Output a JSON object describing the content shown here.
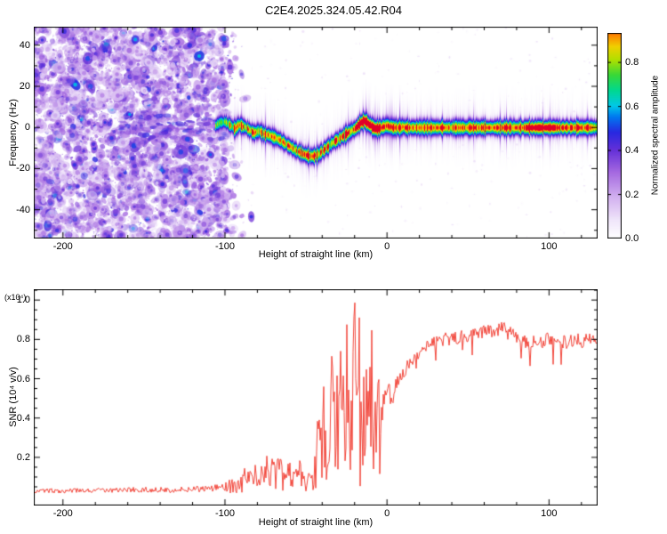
{
  "title": "C2E4.2025.324.05.42.R04",
  "colors": {
    "axis": "#000000",
    "snr_line": "#f03428",
    "background": "#ffffff"
  },
  "chart_data": [
    {
      "type": "heatmap",
      "name": "spectrogram",
      "xlabel": "Height of straight line (km)",
      "ylabel": "Frequency (Hz)",
      "xlim": [
        -218,
        130
      ],
      "ylim": [
        -54,
        49
      ],
      "x_ticks": [
        -200,
        -100,
        0,
        100
      ],
      "y_ticks": [
        -40,
        -20,
        0,
        20,
        40
      ],
      "grid": false,
      "colorbar": {
        "label": "Normalized spectral amplitude",
        "ticks": [
          0.0,
          0.2,
          0.4,
          0.6,
          0.8
        ],
        "lim": [
          0,
          1
        ]
      },
      "colormap": [
        {
          "v": 0.0,
          "c": "#ffffff"
        },
        {
          "v": 0.08,
          "c": "#f0e6fa"
        },
        {
          "v": 0.18,
          "c": "#d4b4f0"
        },
        {
          "v": 0.3,
          "c": "#a468e0"
        },
        {
          "v": 0.4,
          "c": "#6430d8"
        },
        {
          "v": 0.48,
          "c": "#2828e0"
        },
        {
          "v": 0.55,
          "c": "#0078f0"
        },
        {
          "v": 0.6,
          "c": "#00c8e8"
        },
        {
          "v": 0.67,
          "c": "#00d890"
        },
        {
          "v": 0.74,
          "c": "#38d838"
        },
        {
          "v": 0.81,
          "c": "#b0e000"
        },
        {
          "v": 0.87,
          "c": "#f0d000"
        },
        {
          "v": 0.93,
          "c": "#ff7800"
        },
        {
          "v": 1.0,
          "c": "#e00028"
        }
      ],
      "noise_region": {
        "x_start": -218,
        "x_end": -100,
        "description": "dense purple speckle noise (no signal) left of -100 km"
      },
      "trace": [
        [
          -106,
          1
        ],
        [
          -103,
          2.5
        ],
        [
          -100,
          3
        ],
        [
          -97,
          1.5
        ],
        [
          -94,
          -0.5
        ],
        [
          -91,
          1.5
        ],
        [
          -88,
          0.5
        ],
        [
          -85,
          -1
        ],
        [
          -82,
          -2.5
        ],
        [
          -79,
          -1.5
        ],
        [
          -76,
          -3
        ],
        [
          -73,
          -3.5
        ],
        [
          -70,
          -4.5
        ],
        [
          -67,
          -5.5
        ],
        [
          -64,
          -7
        ],
        [
          -61,
          -8.5
        ],
        [
          -58,
          -10
        ],
        [
          -55,
          -11.5
        ],
        [
          -52,
          -12.5
        ],
        [
          -49,
          -13.5
        ],
        [
          -46,
          -13.8
        ],
        [
          -43,
          -13.2
        ],
        [
          -40,
          -11.5
        ],
        [
          -37,
          -9.5
        ],
        [
          -34,
          -7.5
        ],
        [
          -31,
          -6
        ],
        [
          -28,
          -4.5
        ],
        [
          -25,
          -3
        ],
        [
          -22,
          -1.5
        ],
        [
          -19,
          0
        ],
        [
          -16,
          2.5
        ],
        [
          -14,
          3.5
        ],
        [
          -12,
          2.5
        ],
        [
          -10,
          1
        ],
        [
          -8,
          0
        ],
        [
          -6,
          -0.5
        ],
        [
          -4,
          0
        ],
        [
          -2,
          0.5
        ],
        [
          0,
          1
        ],
        [
          3,
          0.3
        ],
        [
          6,
          0
        ],
        [
          10,
          0.4
        ],
        [
          15,
          0
        ],
        [
          20,
          0.3
        ],
        [
          25,
          0
        ],
        [
          30,
          0.2
        ],
        [
          40,
          0.3
        ],
        [
          50,
          0
        ],
        [
          60,
          0.2
        ],
        [
          70,
          0
        ],
        [
          80,
          0.2
        ],
        [
          90,
          0.1
        ],
        [
          100,
          0.2
        ],
        [
          110,
          0
        ],
        [
          120,
          0.1
        ],
        [
          130,
          0
        ]
      ]
    },
    {
      "type": "line",
      "name": "snr",
      "xlabel": "Height of straight line (km)",
      "ylabel": "SNR (10⁴ v/v)",
      "scale_note": "(x10⁴)",
      "xlim": [
        -218,
        130
      ],
      "ylim": [
        -0.045,
        1.055
      ],
      "x_ticks": [
        -200,
        -100,
        0,
        100
      ],
      "y_ticks": [
        0.2,
        0.4,
        0.6,
        0.8,
        1.0
      ],
      "grid": false,
      "series": [
        {
          "name": "SNR",
          "color": "#f03428",
          "points": [
            [
              -218,
              0.03
            ],
            [
              -190,
              0.03
            ],
            [
              -160,
              0.035
            ],
            [
              -130,
              0.035
            ],
            [
              -110,
              0.04
            ],
            [
              -100,
              0.05
            ],
            [
              -92,
              0.07
            ],
            [
              -86,
              0.1
            ],
            [
              -80,
              0.14
            ],
            [
              -76,
              0.18
            ],
            [
              -72,
              0.22
            ],
            [
              -69,
              0.12
            ],
            [
              -66,
              0.17
            ],
            [
              -63,
              0.1
            ],
            [
              -60,
              0.14
            ],
            [
              -57,
              0.1
            ],
            [
              -54,
              0.16
            ],
            [
              -51,
              0.1
            ],
            [
              -49,
              0.07
            ],
            [
              -47,
              0.12
            ],
            [
              -45,
              0.08
            ],
            [
              -43,
              0.28
            ],
            [
              -41,
              0.5
            ],
            [
              -40,
              0.3
            ],
            [
              -38,
              0.55
            ],
            [
              -36,
              0.35
            ],
            [
              -34,
              0.6
            ],
            [
              -32,
              0.4
            ],
            [
              -30,
              0.55
            ],
            [
              -28,
              0.45
            ],
            [
              -26,
              0.52
            ],
            [
              -24,
              0.48
            ],
            [
              -22,
              0.55
            ],
            [
              -21,
              0.5
            ],
            [
              -20,
              1.0
            ],
            [
              -19,
              0.52
            ],
            [
              -18,
              0.6
            ],
            [
              -16,
              0.55
            ],
            [
              -14,
              0.62
            ],
            [
              -12,
              0.5
            ],
            [
              -10,
              0.58
            ],
            [
              -8,
              0.45
            ],
            [
              -6,
              0.52
            ],
            [
              -4,
              0.42
            ],
            [
              -2,
              0.5
            ],
            [
              0,
              0.52
            ],
            [
              2,
              0.55
            ],
            [
              4,
              0.5
            ],
            [
              6,
              0.58
            ],
            [
              8,
              0.6
            ],
            [
              10,
              0.63
            ],
            [
              13,
              0.66
            ],
            [
              16,
              0.7
            ],
            [
              20,
              0.74
            ],
            [
              24,
              0.77
            ],
            [
              28,
              0.79
            ],
            [
              32,
              0.8
            ],
            [
              38,
              0.8
            ],
            [
              44,
              0.81
            ],
            [
              50,
              0.82
            ],
            [
              56,
              0.83
            ],
            [
              62,
              0.84
            ],
            [
              68,
              0.85
            ],
            [
              72,
              0.86
            ],
            [
              76,
              0.84
            ],
            [
              80,
              0.82
            ],
            [
              84,
              0.8
            ],
            [
              88,
              0.78
            ],
            [
              92,
              0.8
            ],
            [
              96,
              0.79
            ],
            [
              100,
              0.8
            ],
            [
              104,
              0.78
            ],
            [
              108,
              0.79
            ],
            [
              112,
              0.78
            ],
            [
              116,
              0.8
            ],
            [
              120,
              0.79
            ],
            [
              124,
              0.8
            ],
            [
              128,
              0.79
            ],
            [
              130,
              0.8
            ]
          ]
        }
      ]
    }
  ]
}
